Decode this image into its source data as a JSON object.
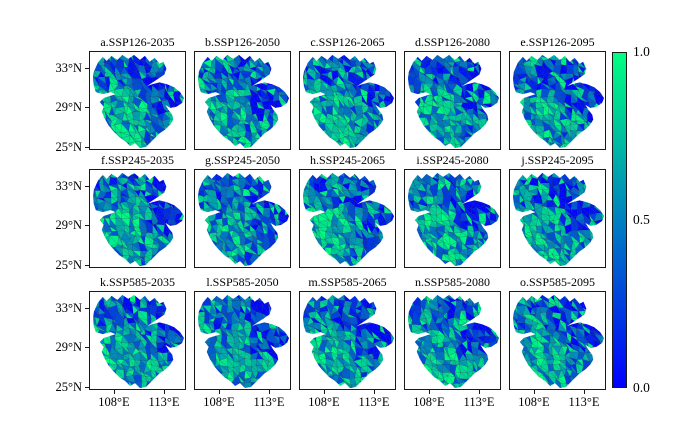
{
  "figure": {
    "background": "#ffffff",
    "description": "Grid of 15 choropleth basin maps for SSP scenarios and years"
  },
  "panels": [
    {
      "title": "a.SSP126-2035"
    },
    {
      "title": "b.SSP126-2050"
    },
    {
      "title": "c.SSP126-2065"
    },
    {
      "title": "d.SSP126-2080"
    },
    {
      "title": "e.SSP126-2095"
    },
    {
      "title": "f.SSP245-2035"
    },
    {
      "title": "g.SSP245-2050"
    },
    {
      "title": "h.SSP245-2065"
    },
    {
      "title": "i.SSP245-2080"
    },
    {
      "title": "j.SSP245-2095"
    },
    {
      "title": "k.SSP585-2035"
    },
    {
      "title": "l.SSP585-2050"
    },
    {
      "title": "m.SSP585-2065"
    },
    {
      "title": "n.SSP585-2080"
    },
    {
      "title": "o.SSP585-2095"
    }
  ],
  "y_axis": {
    "ticks": [
      "33°N",
      "29°N",
      "25°N"
    ]
  },
  "x_axis": {
    "ticks": [
      "108°E",
      "113°E"
    ]
  },
  "colorbar": {
    "ticks": [
      "1.0",
      "0.5",
      "0.0"
    ],
    "min": 0.0,
    "max": 1.0,
    "low_color": "#0000ff",
    "mid_color": "#0080bf",
    "high_color": "#00ff80"
  },
  "chart_data": {
    "type": "heatmap",
    "subtype": "choropleth-map-grid",
    "rows": 3,
    "cols": 5,
    "panel_titles": [
      [
        "a.SSP126-2035",
        "b.SSP126-2050",
        "c.SSP126-2065",
        "d.SSP126-2080",
        "e.SSP126-2095"
      ],
      [
        "f.SSP245-2035",
        "g.SSP245-2050",
        "h.SSP245-2065",
        "i.SSP245-2080",
        "j.SSP245-2095"
      ],
      [
        "k.SSP585-2035",
        "l.SSP585-2050",
        "m.SSP585-2065",
        "n.SSP585-2080",
        "o.SSP585-2095"
      ]
    ],
    "scenarios": [
      "SSP126",
      "SSP245",
      "SSP585"
    ],
    "years": [
      2035,
      2050,
      2065,
      2080,
      2095
    ],
    "x_tick_labels": [
      "108°E",
      "113°E"
    ],
    "y_tick_labels": [
      "33°N",
      "29°N",
      "25°N"
    ],
    "colorbar_range": [
      0.0,
      1.0
    ],
    "colorbar_tick_values": [
      1.0,
      0.5,
      0.0
    ],
    "colormap": "winter (blue 0.0 → teal 0.5 → spring green 1.0)",
    "legend_position": "right",
    "grid": false
  }
}
